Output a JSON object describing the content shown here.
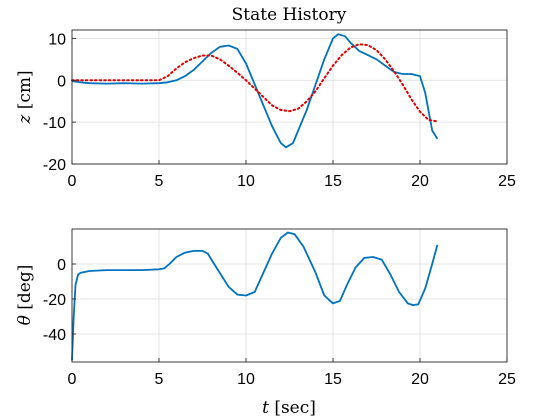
{
  "chart_data": [
    {
      "type": "line",
      "title": "State History",
      "ylabel_symbol": "z",
      "ylabel_unit": "[cm]",
      "xlim": [
        0,
        25
      ],
      "ylim": [
        -20,
        12
      ],
      "xticks": [
        0,
        5,
        10,
        15,
        20,
        25
      ],
      "yticks": [
        -20,
        -10,
        0,
        10
      ],
      "grid": true,
      "colors": {
        "measured": "#0072BD",
        "reference": "#e00000"
      },
      "series": [
        {
          "role": "measured",
          "x": [
            0,
            0.5,
            1,
            2,
            3,
            4,
            5,
            5.5,
            6,
            6.5,
            7,
            7.5,
            8,
            8.5,
            9,
            9.5,
            10,
            10.5,
            11,
            11.5,
            12,
            12.3,
            12.7,
            13,
            13.5,
            14,
            14.5,
            15,
            15.3,
            15.7,
            16,
            16.5,
            17,
            17.5,
            18,
            18.5,
            19,
            19.5,
            20,
            20.3,
            20.7,
            21
          ],
          "y": [
            -0.2,
            -0.5,
            -0.7,
            -0.8,
            -0.7,
            -0.8,
            -0.7,
            -0.5,
            0,
            1,
            2.5,
            4.5,
            6.5,
            8,
            8.3,
            7.5,
            4,
            -1,
            -6,
            -11,
            -15,
            -16,
            -15,
            -12,
            -7,
            -1,
            5,
            10,
            11,
            10.5,
            9,
            7,
            6,
            5,
            3.5,
            2,
            1.5,
            1.5,
            1,
            -3,
            -12,
            -14
          ]
        },
        {
          "role": "reference",
          "x": [
            0,
            1,
            2,
            3,
            4,
            5,
            5.5,
            6,
            6.5,
            7,
            7.5,
            8,
            8.5,
            9,
            9.5,
            10,
            10.5,
            11,
            11.5,
            12,
            12.5,
            13,
            13.5,
            14,
            14.5,
            15,
            15.5,
            16,
            16.5,
            17,
            17.5,
            18,
            18.5,
            19,
            19.5,
            20,
            20.5,
            21
          ],
          "y": [
            0,
            0,
            0,
            0,
            0,
            0,
            1,
            2.8,
            4.3,
            5.3,
            5.9,
            5.9,
            5,
            3.5,
            1.8,
            0,
            -2,
            -4,
            -6,
            -7.1,
            -7.4,
            -6.8,
            -5,
            -2.6,
            0.5,
            3.5,
            6,
            7.8,
            8.6,
            8.4,
            7.2,
            5,
            2.2,
            -1,
            -4.5,
            -7.5,
            -9.5,
            -9.8
          ]
        }
      ]
    },
    {
      "type": "line",
      "ylabel_symbol": "θ",
      "ylabel_unit": "[deg]",
      "xlabel_symbol": "t",
      "xlabel_unit": "[sec]",
      "xlim": [
        0,
        25
      ],
      "ylim": [
        -56,
        20
      ],
      "xticks": [
        0,
        5,
        10,
        15,
        20,
        25
      ],
      "yticks": [
        -40,
        -20,
        0
      ],
      "grid": true,
      "colors": {
        "measured": "#0072BD"
      },
      "series": [
        {
          "role": "measured",
          "x": [
            0,
            0.1,
            0.2,
            0.35,
            0.5,
            1,
            2,
            3,
            4,
            5,
            5.3,
            5.6,
            6,
            6.5,
            7,
            7.5,
            7.8,
            8.3,
            9,
            9.5,
            10,
            10.5,
            11,
            11.5,
            12,
            12.4,
            12.8,
            13.3,
            14,
            14.5,
            15,
            15.4,
            15.8,
            16.3,
            16.8,
            17.3,
            17.8,
            18.3,
            18.8,
            19.3,
            19.6,
            19.9,
            20.3,
            20.7,
            21
          ],
          "y": [
            -55,
            -30,
            -12,
            -6,
            -5,
            -4,
            -3.5,
            -3.5,
            -3.5,
            -3,
            -2.5,
            0,
            4,
            6.5,
            7.5,
            7.5,
            6,
            -2,
            -13,
            -17.5,
            -18,
            -16,
            -5,
            6,
            15,
            18,
            17,
            10,
            -5,
            -18,
            -22.5,
            -21,
            -12,
            -2,
            3.5,
            4,
            2.5,
            -6,
            -16,
            -22.5,
            -23.5,
            -23,
            -14,
            0,
            11
          ]
        }
      ]
    }
  ]
}
